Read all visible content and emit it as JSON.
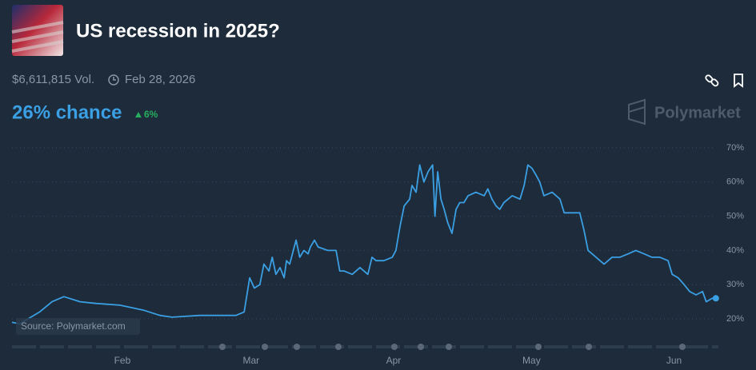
{
  "header": {
    "title": "US recession in 2025?",
    "volume": "$6,611,815 Vol.",
    "end_date": "Feb 28, 2026",
    "chance": "26% chance",
    "change": "6%"
  },
  "logo": "Polymarket",
  "chart_data": {
    "type": "line",
    "source": "Source: Polymarket.com",
    "color": "#3b9fe3",
    "grid": true,
    "x": [
      7,
      8.7,
      10.5,
      13,
      15.7,
      18.3,
      21.8,
      25.3,
      30.5,
      35.7,
      39.2,
      41.8,
      47.9,
      55.7,
      57.5,
      58.7,
      59.7,
      60.9,
      61.8,
      62.9,
      63.6,
      64.4,
      65.3,
      66.2,
      66.7,
      67.4,
      68.8,
      69.6,
      70.5,
      71.4,
      71.9,
      72.8,
      73.6,
      75.7,
      77.5,
      78.3,
      79.2,
      81,
      82.7,
      84.4,
      85.3,
      86.2,
      87.9,
      89.7,
      90.5,
      91.4,
      92.3,
      93.5,
      94,
      94.9,
      95.7,
      96.6,
      97.5,
      98.5,
      99,
      99.6,
      100.3,
      101,
      101.8,
      102.7,
      103.6,
      104.4,
      105.3,
      106.2,
      107.9,
      109.7,
      110.5,
      111.4,
      112.3,
      113.1,
      114,
      115.8,
      117.5,
      118.4,
      119.2,
      120.1,
      121,
      121.8,
      122.7,
      124.5,
      126.2,
      127.1,
      128.8,
      130.5,
      131.4,
      132.3,
      133.2,
      134.9,
      135.8,
      137.5,
      139.2,
      141,
      142.7,
      144.5,
      146.2,
      147.9,
      149.7,
      150.6,
      151.9,
      153.2,
      154.4,
      155.8,
      157.2,
      158,
      159.3,
      160.1
    ],
    "values": [
      19,
      18.5,
      20,
      22,
      25,
      26.5,
      25,
      24.5,
      24,
      22.5,
      21,
      20.5,
      21,
      21,
      22,
      32,
      29,
      30,
      36,
      34,
      38,
      33,
      35,
      32,
      37,
      36,
      43,
      38,
      40,
      39,
      41,
      43,
      41,
      40,
      40,
      34,
      34,
      33,
      35,
      33,
      38,
      37,
      37,
      38,
      40,
      47,
      53,
      55,
      59,
      57,
      65,
      60,
      63,
      65,
      50,
      63,
      55,
      52,
      48,
      45,
      52,
      54,
      54,
      56,
      57,
      56,
      58,
      55,
      53,
      52,
      54,
      56,
      55,
      59,
      65,
      64,
      62,
      60,
      56,
      57,
      55,
      51,
      51,
      51,
      46,
      40,
      39,
      37,
      36,
      38,
      38,
      39,
      40,
      39,
      38,
      38,
      37,
      33,
      32,
      30,
      28,
      27,
      28,
      25,
      26,
      26
    ],
    "xlim": [
      7,
      161
    ],
    "ylim": [
      15,
      72
    ],
    "xticks": [
      {
        "value": 31,
        "label": "Feb"
      },
      {
        "value": 59,
        "label": "Mar"
      },
      {
        "value": 90,
        "label": "Apr"
      },
      {
        "value": 120,
        "label": "May"
      },
      {
        "value": 151,
        "label": "Jun"
      }
    ],
    "yticks": [
      {
        "value": 20,
        "label": "20%"
      },
      {
        "value": 30,
        "label": "30%"
      },
      {
        "value": 40,
        "label": "40%"
      },
      {
        "value": 50,
        "label": "50%"
      },
      {
        "value": 60,
        "label": "60%"
      },
      {
        "value": 70,
        "label": "70%"
      }
    ]
  }
}
